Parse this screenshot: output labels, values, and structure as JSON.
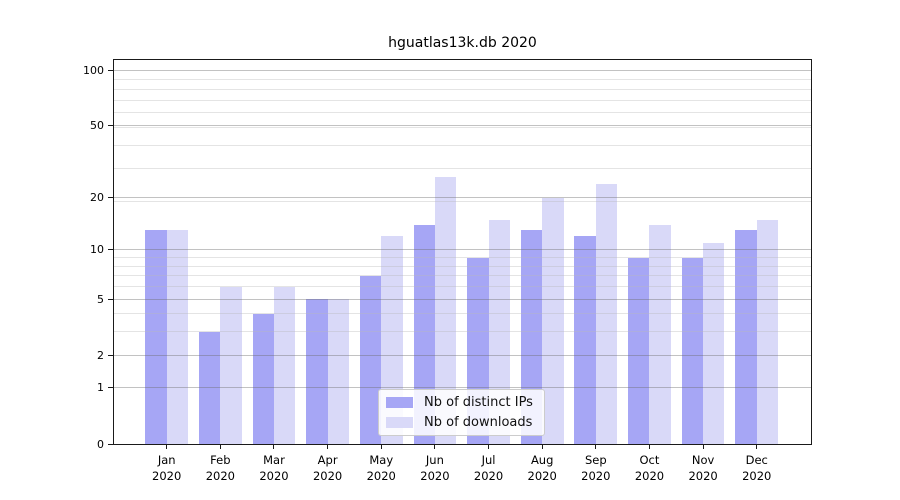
{
  "chart_data": {
    "type": "bar",
    "title": "hguatlas13k.db 2020",
    "categories": [
      "Jan",
      "Feb",
      "Mar",
      "Apr",
      "May",
      "Jun",
      "Jul",
      "Aug",
      "Sep",
      "Oct",
      "Nov",
      "Dec"
    ],
    "category_year": "2020",
    "series": [
      {
        "name": "Nb of distinct IPs",
        "color": "#a6a6f5",
        "values": [
          13,
          3,
          4,
          5,
          7,
          14,
          9,
          13,
          12,
          9,
          9,
          13
        ]
      },
      {
        "name": "Nb of downloads",
        "color": "#d9d9f8",
        "values": [
          13,
          6,
          6,
          5,
          12,
          26,
          15,
          20,
          24,
          14,
          11,
          15
        ]
      }
    ],
    "xlabel": "",
    "ylabel": "",
    "y_scale": "log(1+y)",
    "y_ticks": [
      0,
      1,
      2,
      5,
      10,
      20,
      50,
      100
    ],
    "y_minor_gridline_values": [
      3,
      4,
      6,
      7,
      8,
      9,
      19,
      29,
      39,
      49,
      59,
      69,
      79,
      89
    ],
    "ylim": [
      0,
      114
    ],
    "grid": true,
    "legend_position": "lower center",
    "colors": {
      "background": "#ffffff",
      "spine": "#1a1a1a",
      "major_grid": "#c3c3c3",
      "minor_grid": "#e4e4e4",
      "legend_border": "#cccccc"
    }
  }
}
